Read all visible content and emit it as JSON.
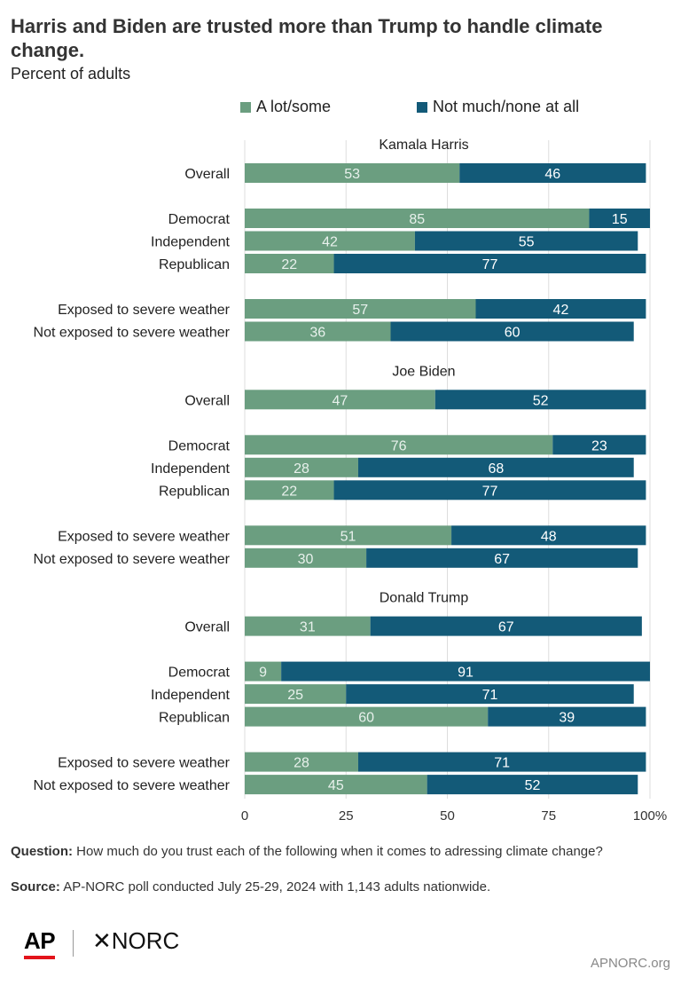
{
  "title": "Harris and Biden are trusted more than Trump to handle climate change.",
  "subtitle": "Percent of adults",
  "legend": [
    {
      "label": "A lot/some",
      "color": "#6b9e80"
    },
    {
      "label": "Not much/none at all",
      "color": "#135a78"
    }
  ],
  "chart_data": {
    "type": "bar",
    "orientation": "horizontal",
    "stacked": true,
    "xlim": [
      0,
      100
    ],
    "x_ticks": [
      "0",
      "25",
      "50",
      "75",
      "100%"
    ],
    "grid": true,
    "legend_position": "top",
    "series": [
      {
        "name": "A lot/some",
        "color": "#6b9e80"
      },
      {
        "name": "Not much/none at all",
        "color": "#135a78"
      }
    ],
    "panels": [
      {
        "title": "Kamala Harris",
        "groups": [
          [
            {
              "label": "Overall",
              "values": [
                53,
                46
              ]
            }
          ],
          [
            {
              "label": "Democrat",
              "values": [
                85,
                15
              ]
            },
            {
              "label": "Independent",
              "values": [
                42,
                55
              ]
            },
            {
              "label": "Republican",
              "values": [
                22,
                77
              ]
            }
          ],
          [
            {
              "label": "Exposed to severe weather",
              "values": [
                57,
                42
              ]
            },
            {
              "label": "Not exposed to severe weather",
              "values": [
                36,
                60
              ]
            }
          ]
        ]
      },
      {
        "title": "Joe Biden",
        "groups": [
          [
            {
              "label": "Overall",
              "values": [
                47,
                52
              ]
            }
          ],
          [
            {
              "label": "Democrat",
              "values": [
                76,
                23
              ]
            },
            {
              "label": "Independent",
              "values": [
                28,
                68
              ]
            },
            {
              "label": "Republican",
              "values": [
                22,
                77
              ]
            }
          ],
          [
            {
              "label": "Exposed to severe weather",
              "values": [
                51,
                48
              ]
            },
            {
              "label": "Not exposed to severe weather",
              "values": [
                30,
                67
              ]
            }
          ]
        ]
      },
      {
        "title": "Donald Trump",
        "groups": [
          [
            {
              "label": "Overall",
              "values": [
                31,
                67
              ]
            }
          ],
          [
            {
              "label": "Democrat",
              "values": [
                9,
                91
              ]
            },
            {
              "label": "Independent",
              "values": [
                25,
                71
              ]
            },
            {
              "label": "Republican",
              "values": [
                60,
                39
              ]
            }
          ],
          [
            {
              "label": "Exposed to severe weather",
              "values": [
                28,
                71
              ]
            },
            {
              "label": "Not exposed to severe weather",
              "values": [
                45,
                52
              ]
            }
          ]
        ]
      }
    ]
  },
  "footer": {
    "question_label": "Question:",
    "question_text": "How much do you trust each of the following when it comes to adressing climate change?",
    "source_label": "Source:",
    "source_text": "AP-NORC poll conducted July 25-29, 2024 with 1,143 adults nationwide."
  },
  "logos": {
    "ap": "AP",
    "norc": "✕NORC"
  },
  "site": "APNORC.org"
}
